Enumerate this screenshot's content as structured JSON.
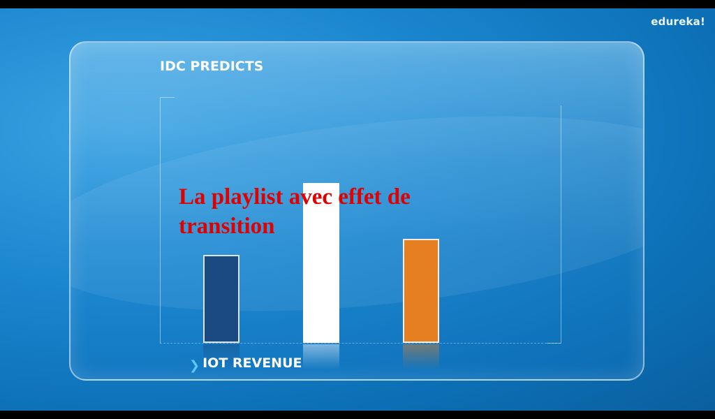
{
  "watermark": "edureka!",
  "caption": "La playlist avec effet de transition",
  "chart_data": {
    "type": "bar",
    "title": "IDC PREDICTS",
    "xlabel": "IOT REVENUE",
    "ylabel": "",
    "categories": [
      "",
      "",
      ""
    ],
    "values": [
      70,
      127,
      83
    ],
    "ylim": [
      0,
      200
    ],
    "colors": [
      "#1b4a82",
      "#ffffff",
      "#e67e22"
    ],
    "grid": false
  }
}
